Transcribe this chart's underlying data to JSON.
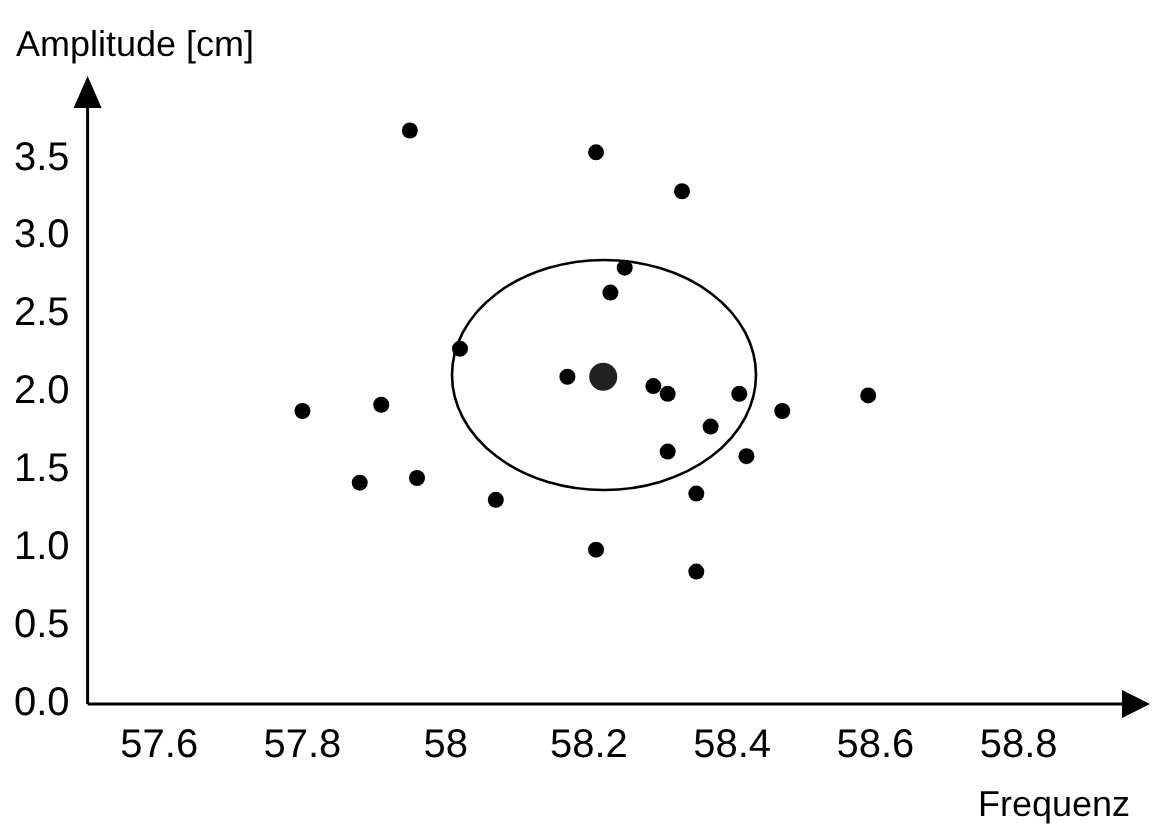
{
  "chart_data": {
    "type": "scatter",
    "xlabel": "Frequenz",
    "ylabel": "Amplitude [cm]",
    "xlim": [
      57.5,
      58.95
    ],
    "xticks": [
      57.6,
      57.8,
      {
        "value": 58,
        "label": "58"
      },
      58.2,
      58.4,
      58.6,
      58.8
    ],
    "ylim": [
      0,
      3.85
    ],
    "yticks": [
      {
        "value": 0,
        "label": "0.0"
      },
      0.5,
      {
        "value": 1,
        "label": "1.0"
      },
      1.5,
      {
        "value": 2,
        "label": "2.0"
      },
      2.5,
      {
        "value": 3,
        "label": "3.0"
      },
      3.5
    ],
    "marker": "circle",
    "grid": false,
    "series": [
      {
        "color": "#000000",
        "x": [
          57.95,
          58.21,
          58.33,
          58.25,
          58.23,
          58.02,
          58.17,
          58.29,
          58.31,
          58.41,
          58.47,
          58.59,
          58.37,
          58.42,
          58.31,
          58.35,
          58.07,
          58.21,
          58.35,
          57.8,
          57.91,
          57.88,
          57.96
        ],
        "values": [
          3.68,
          3.54,
          3.29,
          2.8,
          2.64,
          2.28,
          2.1,
          2.04,
          1.99,
          1.99,
          1.88,
          1.98,
          1.78,
          1.59,
          1.62,
          1.35,
          1.31,
          0.99,
          0.85,
          1.88,
          1.92,
          1.42,
          1.45
        ]
      },
      {
        "color": "#222222",
        "x": [
          58.22
        ],
        "values": [
          2.1
        ]
      }
    ]
  }
}
